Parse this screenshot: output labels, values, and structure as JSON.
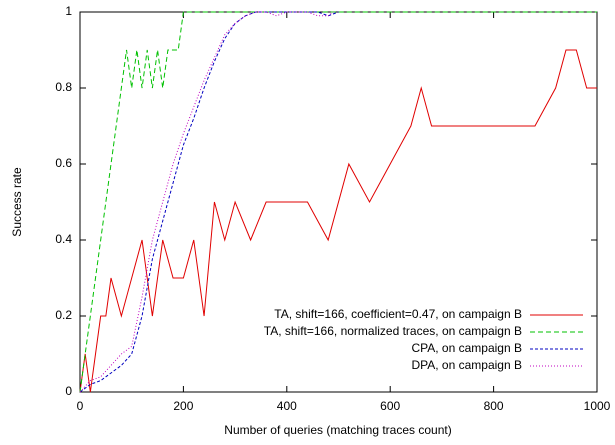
{
  "chart_data": {
    "type": "line",
    "x_label": "Number of queries (matching traces count)",
    "y_label": "Success rate",
    "xlim": [
      0,
      1000
    ],
    "xticks": [
      0,
      200,
      400,
      600,
      800,
      1000
    ],
    "ylim": [
      0,
      1
    ],
    "yticks": [
      0,
      0.2,
      0.4,
      0.6,
      0.8,
      1
    ],
    "legend": "lower right",
    "series": [
      {
        "name": "TA, shift=166, coefficient=0.47, on campaign B",
        "color": "#e00000",
        "x": [
          0,
          10,
          20,
          30,
          40,
          50,
          60,
          80,
          100,
          120,
          140,
          160,
          180,
          200,
          220,
          240,
          260,
          280,
          300,
          330,
          360,
          400,
          440,
          480,
          520,
          560,
          600,
          640,
          660,
          680,
          720,
          760,
          800,
          840,
          880,
          920,
          940,
          960,
          980,
          1000
        ],
        "values": [
          0,
          0.1,
          0,
          0.1,
          0.2,
          0.2,
          0.3,
          0.2,
          0.3,
          0.4,
          0.2,
          0.4,
          0.3,
          0.3,
          0.4,
          0.2,
          0.5,
          0.4,
          0.5,
          0.4,
          0.5,
          0.5,
          0.5,
          0.4,
          0.6,
          0.5,
          0.6,
          0.7,
          0.8,
          0.7,
          0.7,
          0.7,
          0.7,
          0.7,
          0.7,
          0.8,
          0.9,
          0.9,
          0.8,
          0.8
        ]
      },
      {
        "name": "TA, shift=166, normalized traces, on campaign B",
        "color": "#00c000",
        "x": [
          0,
          10,
          20,
          30,
          40,
          50,
          60,
          70,
          80,
          90,
          100,
          110,
          120,
          130,
          140,
          150,
          160,
          170,
          180,
          190,
          200,
          1000
        ],
        "values": [
          0,
          0.1,
          0.2,
          0.3,
          0.4,
          0.5,
          0.6,
          0.7,
          0.8,
          0.9,
          0.8,
          0.9,
          0.8,
          0.9,
          0.8,
          0.9,
          0.8,
          0.9,
          0.9,
          0.9,
          1,
          1
        ]
      },
      {
        "name": "CPA, on campaign B",
        "color": "#0000c0",
        "x": [
          0,
          20,
          40,
          60,
          80,
          100,
          120,
          140,
          160,
          180,
          200,
          220,
          240,
          260,
          280,
          300,
          320,
          340,
          360,
          380,
          400,
          420,
          440,
          460,
          480,
          500
        ],
        "values": [
          0,
          0.02,
          0.03,
          0.05,
          0.07,
          0.1,
          0.2,
          0.35,
          0.45,
          0.55,
          0.65,
          0.72,
          0.8,
          0.87,
          0.93,
          0.97,
          0.99,
          1,
          1,
          1,
          1,
          1,
          1,
          1,
          0.99,
          1
        ]
      },
      {
        "name": "DPA, on campaign B",
        "color": "#c000c0",
        "x": [
          0,
          20,
          40,
          60,
          80,
          100,
          120,
          140,
          160,
          180,
          200,
          220,
          240,
          260,
          280,
          300,
          320,
          340,
          360,
          380,
          400,
          420,
          440,
          460,
          480,
          490
        ],
        "values": [
          0,
          0.03,
          0.04,
          0.07,
          0.1,
          0.12,
          0.25,
          0.4,
          0.5,
          0.6,
          0.68,
          0.75,
          0.82,
          0.88,
          0.94,
          0.97,
          0.99,
          1,
          1,
          0.99,
          1,
          1,
          1,
          0.99,
          0.99,
          1
        ]
      }
    ]
  }
}
